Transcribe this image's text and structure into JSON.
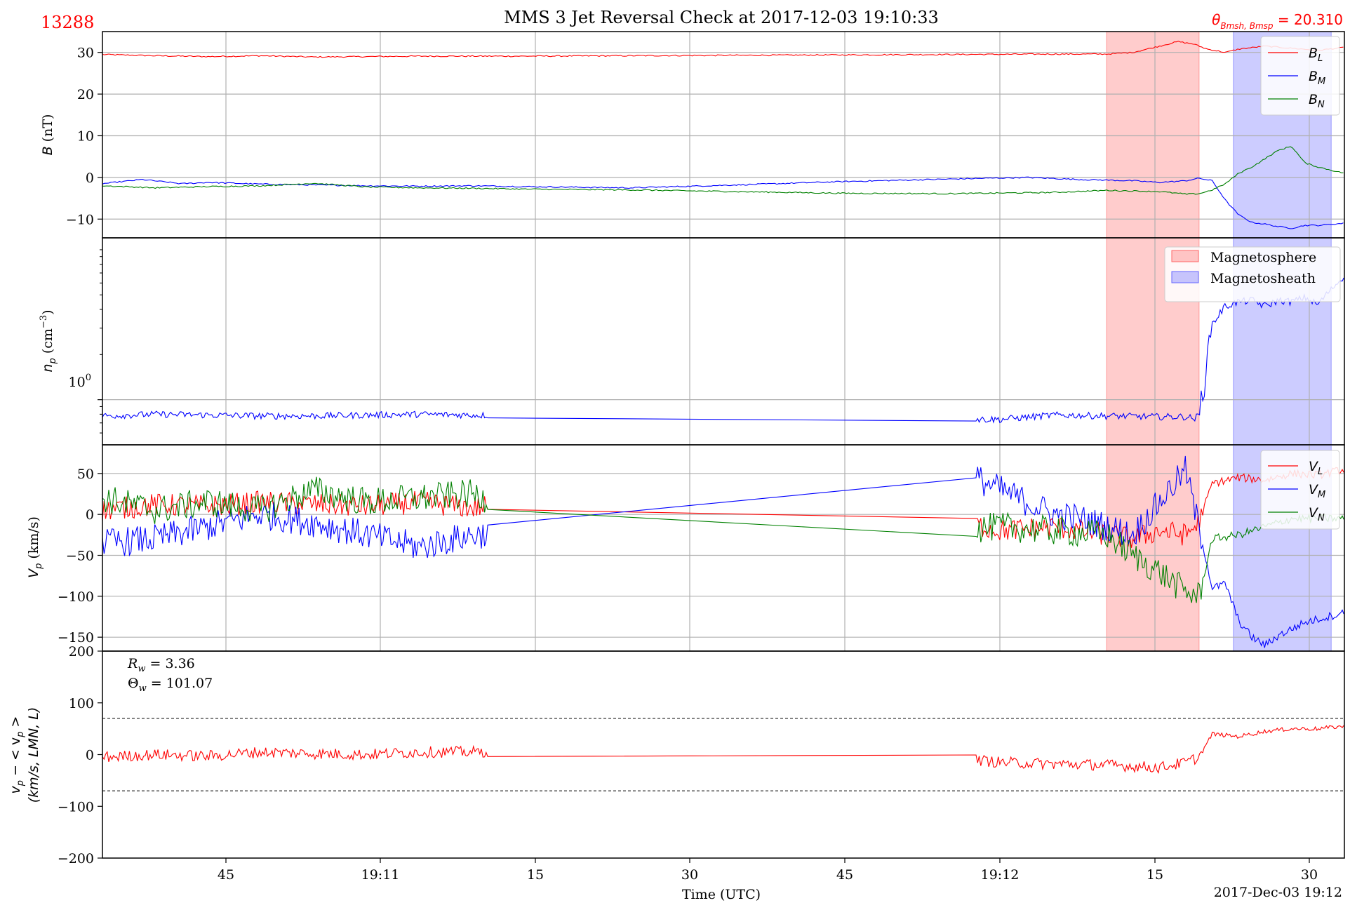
{
  "title": "MMS 3 Jet Reversal Check at 2017-12-03 19:10:33",
  "event_id": "13288",
  "theta_label": {
    "prefix": "θ",
    "sub": "Bmsh, Bmsp",
    "suffix": " = 20.310"
  },
  "colors": {
    "L": "#ff0000",
    "M": "#0000ff",
    "N": "#008000",
    "np": "#0000ff",
    "magnetosphere": "#ff9999",
    "magnetosheath": "#9999ff",
    "grid": "#b0b0b0"
  },
  "x_ticks": [
    "45",
    "19:11",
    "15",
    "30",
    "45",
    "19:12",
    "15",
    "30"
  ],
  "x_axis_label": "Time (UTC)",
  "x_end_label": "2017-Dec-03 19:12",
  "chart_data": [
    {
      "type": "line",
      "panel": "B",
      "ylabel": {
        "main": "B",
        "unit": " (nT)"
      },
      "yticks": [
        "30",
        "20",
        "10",
        "0",
        "−10"
      ],
      "ylim": [
        -14.5,
        35
      ],
      "x_unit": "seconds after 19:10:30 (UTC)",
      "xlim": [
        -12,
        35
      ],
      "shaded": [
        {
          "name": "Magnetosphere",
          "x0": 26.0,
          "x1": 29.5,
          "color": "magnetosphere"
        },
        {
          "name": "Magnetosheath",
          "x0": 30.8,
          "x1": 34.5,
          "color": "magnetosheath"
        }
      ],
      "legend": [
        {
          "base": "B",
          "sub": "L"
        },
        {
          "base": "B",
          "sub": "M"
        },
        {
          "base": "B",
          "sub": "N"
        }
      ],
      "series": [
        {
          "name": "B_L",
          "color": "L",
          "x": [
            -12,
            -10,
            -8,
            -6,
            -4,
            -2,
            0,
            4,
            8,
            12,
            16,
            20,
            24,
            26,
            27,
            28,
            28.7,
            29.3,
            29.8,
            30.5,
            31,
            32,
            33,
            34,
            35
          ],
          "y": [
            29.5,
            29.2,
            29.0,
            29.2,
            28.9,
            29.0,
            29.1,
            29.1,
            29.2,
            29.3,
            29.4,
            29.5,
            29.6,
            29.6,
            30.0,
            31.5,
            32.6,
            32.0,
            30.8,
            30.0,
            30.8,
            31.5,
            31.0,
            30.5,
            31.2
          ]
        },
        {
          "name": "B_M",
          "color": "M",
          "x": [
            -12,
            -10.5,
            -9,
            -8,
            -6,
            -4,
            -2,
            0,
            2,
            4,
            8,
            12,
            16,
            20,
            23,
            25,
            27,
            28,
            29,
            29.5,
            30,
            30.5,
            31,
            31.5,
            32,
            32.5,
            33,
            33.5,
            34,
            35
          ],
          "y": [
            -1.5,
            -0.5,
            -1.5,
            -1.2,
            -1.6,
            -1.8,
            -2.0,
            -2.1,
            -2.0,
            -2.2,
            -2.5,
            -1.8,
            -1.0,
            -0.4,
            0.0,
            -0.5,
            -0.8,
            -1.2,
            -0.8,
            -0.2,
            -0.8,
            -5.5,
            -9.0,
            -10.8,
            -11.2,
            -11.8,
            -12.2,
            -11.5,
            -11.5,
            -11.0
          ]
        },
        {
          "name": "B_N",
          "color": "N",
          "x": [
            -12,
            -10,
            -8,
            -6,
            -4,
            -2,
            0,
            2,
            4,
            8,
            12,
            16,
            20,
            24,
            26,
            28,
            29,
            29.5,
            30,
            30.5,
            31,
            31.5,
            32,
            32.5,
            33,
            33.5,
            34,
            35
          ],
          "y": [
            -2.0,
            -2.5,
            -2.2,
            -2.0,
            -1.4,
            -2.3,
            -2.5,
            -2.6,
            -2.8,
            -3.0,
            -3.4,
            -3.8,
            -3.9,
            -3.6,
            -3.1,
            -3.4,
            -4.0,
            -3.9,
            -3.0,
            -1.5,
            1.0,
            2.5,
            4.5,
            6.5,
            7.5,
            3.5,
            2.5,
            1.0
          ]
        }
      ]
    },
    {
      "type": "line",
      "panel": "np",
      "ylabel": {
        "main": "n",
        "sub": "p",
        "unit": " (cm",
        "sup": "−3",
        "close": ")"
      },
      "yscale": "log",
      "ylim": [
        0.5,
        12
      ],
      "ytick_label": {
        "base": "10",
        "exp": "0"
      },
      "xlim": [
        -12,
        35
      ],
      "series": [
        {
          "name": "n_p",
          "color": "np",
          "x": [
            -12,
            -10,
            -8,
            -6,
            -4,
            -2,
            0,
            2,
            4,
            6,
            8,
            10,
            12,
            14,
            16,
            18,
            20,
            22,
            24,
            26,
            28,
            29,
            29.3,
            29.5,
            29.7,
            30,
            30.5,
            31,
            31.5,
            32,
            32.5,
            33,
            33.5,
            34,
            35
          ],
          "y": [
            0.78,
            0.8,
            0.79,
            0.78,
            0.78,
            0.79,
            0.8,
            0.79,
            0.78,
            0.8,
            0.78,
            0.78,
            0.78,
            0.77,
            0.75,
            0.76,
            0.74,
            0.74,
            0.79,
            0.78,
            0.77,
            0.77,
            0.75,
            0.78,
            1.3,
            3.2,
            4.2,
            4.5,
            4.6,
            4.2,
            4.6,
            4.5,
            4.8,
            4.3,
            6.6
          ]
        }
      ]
    },
    {
      "type": "line",
      "panel": "Vp",
      "ylabel": {
        "main": "V",
        "sub": "p",
        "unit": " (km/s)"
      },
      "yticks": [
        "50",
        "0",
        "−50",
        "−100",
        "−150"
      ],
      "ylim": [
        -167,
        85
      ],
      "xlim": [
        -12,
        35
      ],
      "legend": [
        {
          "base": "V",
          "sub": "L"
        },
        {
          "base": "V",
          "sub": "M"
        },
        {
          "base": "V",
          "sub": "N"
        }
      ],
      "series": [
        {
          "name": "V_L",
          "color": "L",
          "x": [
            -12,
            -10,
            -8,
            -6,
            -4,
            -2,
            0,
            2,
            4,
            6,
            8,
            10,
            12,
            14,
            16,
            18,
            20,
            22,
            24,
            26,
            27,
            28,
            29,
            29.5,
            30,
            31,
            32,
            33,
            34,
            35
          ],
          "y": [
            5,
            12,
            10,
            15,
            12,
            10,
            15,
            8,
            12,
            8,
            5,
            10,
            15,
            2,
            0,
            -2,
            -5,
            -20,
            -15,
            -25,
            -30,
            -20,
            -25,
            -10,
            38,
            45,
            42,
            50,
            48,
            55
          ]
        },
        {
          "name": "V_M",
          "color": "M",
          "x": [
            -12,
            -10,
            -8,
            -6,
            -4,
            -2,
            0,
            2,
            4,
            6,
            8,
            10,
            12,
            14,
            16,
            18,
            20,
            21,
            22,
            23,
            24,
            25,
            26,
            27,
            28,
            29,
            29.3,
            29.6,
            30,
            30.5,
            31,
            31.5,
            32,
            32.5,
            33,
            33.5,
            34,
            35
          ],
          "y": [
            -35,
            -30,
            -15,
            0,
            -10,
            -25,
            -40,
            -25,
            -20,
            -40,
            -50,
            -30,
            -25,
            -40,
            -45,
            -20,
            25,
            45,
            30,
            15,
            0,
            -5,
            -15,
            -25,
            15,
            55,
            10,
            -30,
            -90,
            -85,
            -130,
            -150,
            -160,
            -148,
            -140,
            -132,
            -128,
            -120
          ]
        },
        {
          "name": "V_N",
          "color": "N",
          "x": [
            -12,
            -10,
            -8,
            -6,
            -4,
            -2,
            0,
            2,
            4,
            6,
            8,
            10,
            12,
            14,
            16,
            18,
            20,
            22,
            24,
            26,
            27,
            28,
            29,
            29.5,
            30,
            31,
            32,
            33,
            34,
            35
          ],
          "y": [
            20,
            5,
            15,
            5,
            30,
            15,
            20,
            25,
            5,
            -20,
            -35,
            -25,
            -15,
            -5,
            -10,
            -15,
            -20,
            -15,
            -20,
            -25,
            -50,
            -70,
            -95,
            -100,
            -30,
            -25,
            -15,
            -5,
            -5,
            -5
          ]
        }
      ]
    },
    {
      "type": "line",
      "panel": "dVp",
      "ylabel": {
        "line1": "v",
        "line1sub": "p",
        "line1rest": " − < v",
        "line1sub2": "p",
        "line1end": " >",
        "line2": "(km/s, LMN, L)"
      },
      "yticks": [
        "200",
        "100",
        "0",
        "−100",
        "−200"
      ],
      "ylim": [
        -200,
        200
      ],
      "xlim": [
        -12,
        35
      ],
      "reference_lines": [
        70,
        -70
      ],
      "annotations": [
        {
          "base": "R",
          "sub": "w",
          "text": " = 3.36"
        },
        {
          "base": "Θ",
          "sub": "w",
          "text": " = 101.07"
        }
      ],
      "series": [
        {
          "name": "v_p − <v_p>",
          "color": "L",
          "x": [
            -12,
            -10,
            -8,
            -6,
            -4,
            -2,
            0,
            2,
            4,
            6,
            8,
            10,
            12,
            14,
            16,
            18,
            20,
            22,
            24,
            26,
            28,
            29,
            29.5,
            30,
            31,
            32,
            33,
            34,
            35
          ],
          "y": [
            -5,
            0,
            -3,
            5,
            2,
            0,
            5,
            5,
            8,
            10,
            5,
            2,
            3,
            5,
            -10,
            -8,
            -5,
            -15,
            -18,
            -20,
            -25,
            -15,
            -5,
            40,
            35,
            45,
            50,
            50,
            55
          ]
        }
      ]
    }
  ]
}
